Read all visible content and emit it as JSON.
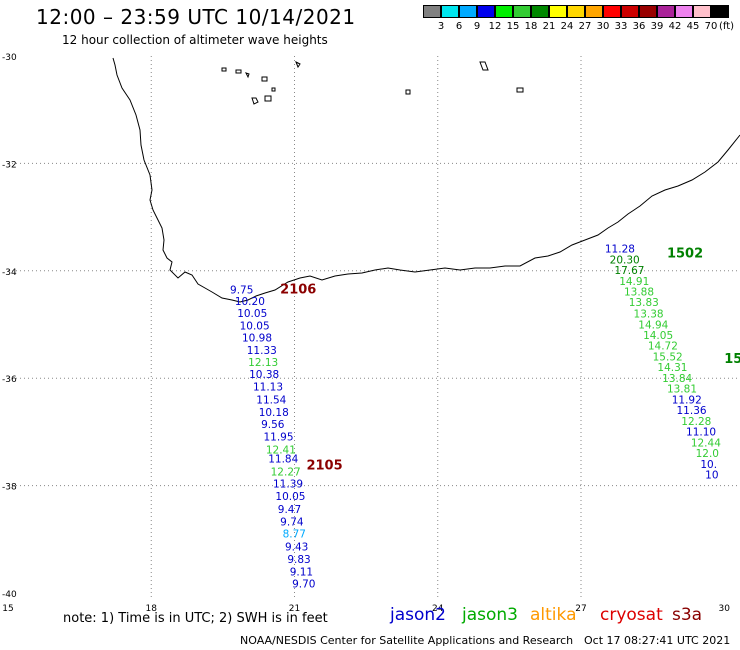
{
  "header": {
    "title": "12:00 – 23:59 UTC 10/14/2021",
    "subtitle": "12 hour collection of altimeter wave heights"
  },
  "colorbar": {
    "unit": "(ft)",
    "levels": [
      "3",
      "6",
      "9",
      "12",
      "15",
      "18",
      "21",
      "24",
      "27",
      "30",
      "33",
      "36",
      "39",
      "42",
      "45",
      "70"
    ],
    "colors": [
      "#808080",
      "#00e5ee",
      "#00aaff",
      "#0000ee",
      "#00ee00",
      "#33cc33",
      "#008800",
      "#ffff00",
      "#ffd700",
      "#ffa500",
      "#ff0000",
      "#cc0000",
      "#990000",
      "#aa2299",
      "#ee82ee",
      "#ffc0cb",
      "#000000"
    ]
  },
  "axes": {
    "lat_labels": [
      "-30",
      "-32",
      "-34",
      "-36",
      "-38",
      "-40"
    ],
    "lon_labels": [
      "15",
      "18",
      "21",
      "24",
      "27",
      "30"
    ]
  },
  "passes": [
    {
      "id": "2106",
      "color": "#8b0000",
      "label_lon": 20.7,
      "label_lat": -34.42
    },
    {
      "id": "2105",
      "color": "#8b0000",
      "label_lon": 21.25,
      "label_lat": -37.7
    },
    {
      "id": "1502",
      "color": "#008000",
      "label_lon": 28.8,
      "label_lat": -33.75
    },
    {
      "id": "15",
      "color": "#008000",
      "label_lon": 30.0,
      "label_lat": -35.72
    }
  ],
  "observations": [
    {
      "v": "9.75",
      "lon": 19.65,
      "lat": -34.42,
      "sat": "jason2"
    },
    {
      "v": "10.20",
      "lon": 19.75,
      "lat": -34.64,
      "sat": "jason2"
    },
    {
      "v": "10.05",
      "lon": 19.8,
      "lat": -34.86,
      "sat": "jason2"
    },
    {
      "v": "10.05",
      "lon": 19.85,
      "lat": -35.09,
      "sat": "jason2"
    },
    {
      "v": "10.98",
      "lon": 19.9,
      "lat": -35.32,
      "sat": "jason2"
    },
    {
      "v": "11.33",
      "lon": 20.0,
      "lat": -35.55,
      "sat": "jason2"
    },
    {
      "v": "12.13",
      "lon": 20.03,
      "lat": -35.77,
      "sat": "jason3"
    },
    {
      "v": "10.38",
      "lon": 20.05,
      "lat": -36.0,
      "sat": "jason2"
    },
    {
      "v": "11.13",
      "lon": 20.13,
      "lat": -36.23,
      "sat": "jason2"
    },
    {
      "v": "11.54",
      "lon": 20.2,
      "lat": -36.47,
      "sat": "jason2"
    },
    {
      "v": "10.18",
      "lon": 20.25,
      "lat": -36.7,
      "sat": "jason2"
    },
    {
      "v": "9.56",
      "lon": 20.3,
      "lat": -36.93,
      "sat": "jason2"
    },
    {
      "v": "11.95",
      "lon": 20.35,
      "lat": -37.16,
      "sat": "jason2"
    },
    {
      "v": "12.41",
      "lon": 20.4,
      "lat": -37.4,
      "sat": "jason3"
    },
    {
      "v": "11.84",
      "lon": 20.45,
      "lat": -37.57,
      "sat": "jason2"
    },
    {
      "v": "12.27",
      "lon": 20.5,
      "lat": -37.81,
      "sat": "jason3"
    },
    {
      "v": "11.39",
      "lon": 20.55,
      "lat": -38.04,
      "sat": "jason2"
    },
    {
      "v": "10.05",
      "lon": 20.6,
      "lat": -38.27,
      "sat": "jason2"
    },
    {
      "v": "9.47",
      "lon": 20.65,
      "lat": -38.51,
      "sat": "jason2"
    },
    {
      "v": "9.74",
      "lon": 20.7,
      "lat": -38.74,
      "sat": "jason2"
    },
    {
      "v": "8.77",
      "lon": 20.75,
      "lat": -38.97,
      "sat": "cyan"
    },
    {
      "v": "9.43",
      "lon": 20.8,
      "lat": -39.21,
      "sat": "jason2"
    },
    {
      "v": "9.83",
      "lon": 20.85,
      "lat": -39.44,
      "sat": "jason2"
    },
    {
      "v": "9.11",
      "lon": 20.9,
      "lat": -39.67,
      "sat": "jason2"
    },
    {
      "v": "9.70",
      "lon": 20.95,
      "lat": -39.9,
      "sat": "jason2"
    },
    {
      "v": "11.28",
      "lon": 27.5,
      "lat": -33.66,
      "sat": "jason2"
    },
    {
      "v": "20.30",
      "lon": 27.6,
      "lat": -33.86,
      "sat": "jason3dark"
    },
    {
      "v": "17.67",
      "lon": 27.7,
      "lat": -34.06,
      "sat": "jason3dark"
    },
    {
      "v": "14.91",
      "lon": 27.8,
      "lat": -34.26,
      "sat": "jason3"
    },
    {
      "v": "13.88",
      "lon": 27.9,
      "lat": -34.46,
      "sat": "jason3"
    },
    {
      "v": "13.83",
      "lon": 28.0,
      "lat": -34.66,
      "sat": "jason3"
    },
    {
      "v": "13.38",
      "lon": 28.1,
      "lat": -34.87,
      "sat": "jason3"
    },
    {
      "v": "14.94",
      "lon": 28.2,
      "lat": -35.07,
      "sat": "jason3"
    },
    {
      "v": "14.05",
      "lon": 28.3,
      "lat": -35.27,
      "sat": "jason3"
    },
    {
      "v": "14.72",
      "lon": 28.4,
      "lat": -35.47,
      "sat": "jason3"
    },
    {
      "v": "15.52",
      "lon": 28.5,
      "lat": -35.67,
      "sat": "jason3"
    },
    {
      "v": "14.31",
      "lon": 28.6,
      "lat": -35.87,
      "sat": "jason3"
    },
    {
      "v": "13.84",
      "lon": 28.7,
      "lat": -36.07,
      "sat": "jason3"
    },
    {
      "v": "13.81",
      "lon": 28.8,
      "lat": -36.27,
      "sat": "jason3"
    },
    {
      "v": "11.92",
      "lon": 28.9,
      "lat": -36.47,
      "sat": "jason2"
    },
    {
      "v": "11.36",
      "lon": 29.0,
      "lat": -36.67,
      "sat": "jason2"
    },
    {
      "v": "12.28",
      "lon": 29.1,
      "lat": -36.87,
      "sat": "jason3"
    },
    {
      "v": "11.10",
      "lon": 29.2,
      "lat": -37.07,
      "sat": "jason2"
    },
    {
      "v": "12.44",
      "lon": 29.3,
      "lat": -37.27,
      "sat": "jason3"
    },
    {
      "v": "12.0",
      "lon": 29.4,
      "lat": -37.47,
      "sat": "jason3"
    },
    {
      "v": "10.",
      "lon": 29.5,
      "lat": -37.67,
      "sat": "jason2"
    },
    {
      "v": "10",
      "lon": 29.6,
      "lat": -37.87,
      "sat": "jason2"
    }
  ],
  "note": "note: 1) Time is in UTC; 2) SWH is in feet",
  "legend": [
    {
      "name": "jason2",
      "color": "#0000cc"
    },
    {
      "name": "jason3",
      "color": "#00aa00"
    },
    {
      "name": "altika",
      "color": "#ff9900"
    },
    {
      "name": "cryosat",
      "color": "#dd0000"
    },
    {
      "name": "s3a",
      "color": "#880000"
    }
  ],
  "footer": {
    "credit": "NOAA/NESDIS Center for Satellite Applications and Research",
    "timestamp": "Oct 17 08:27:41 UTC 2021"
  }
}
